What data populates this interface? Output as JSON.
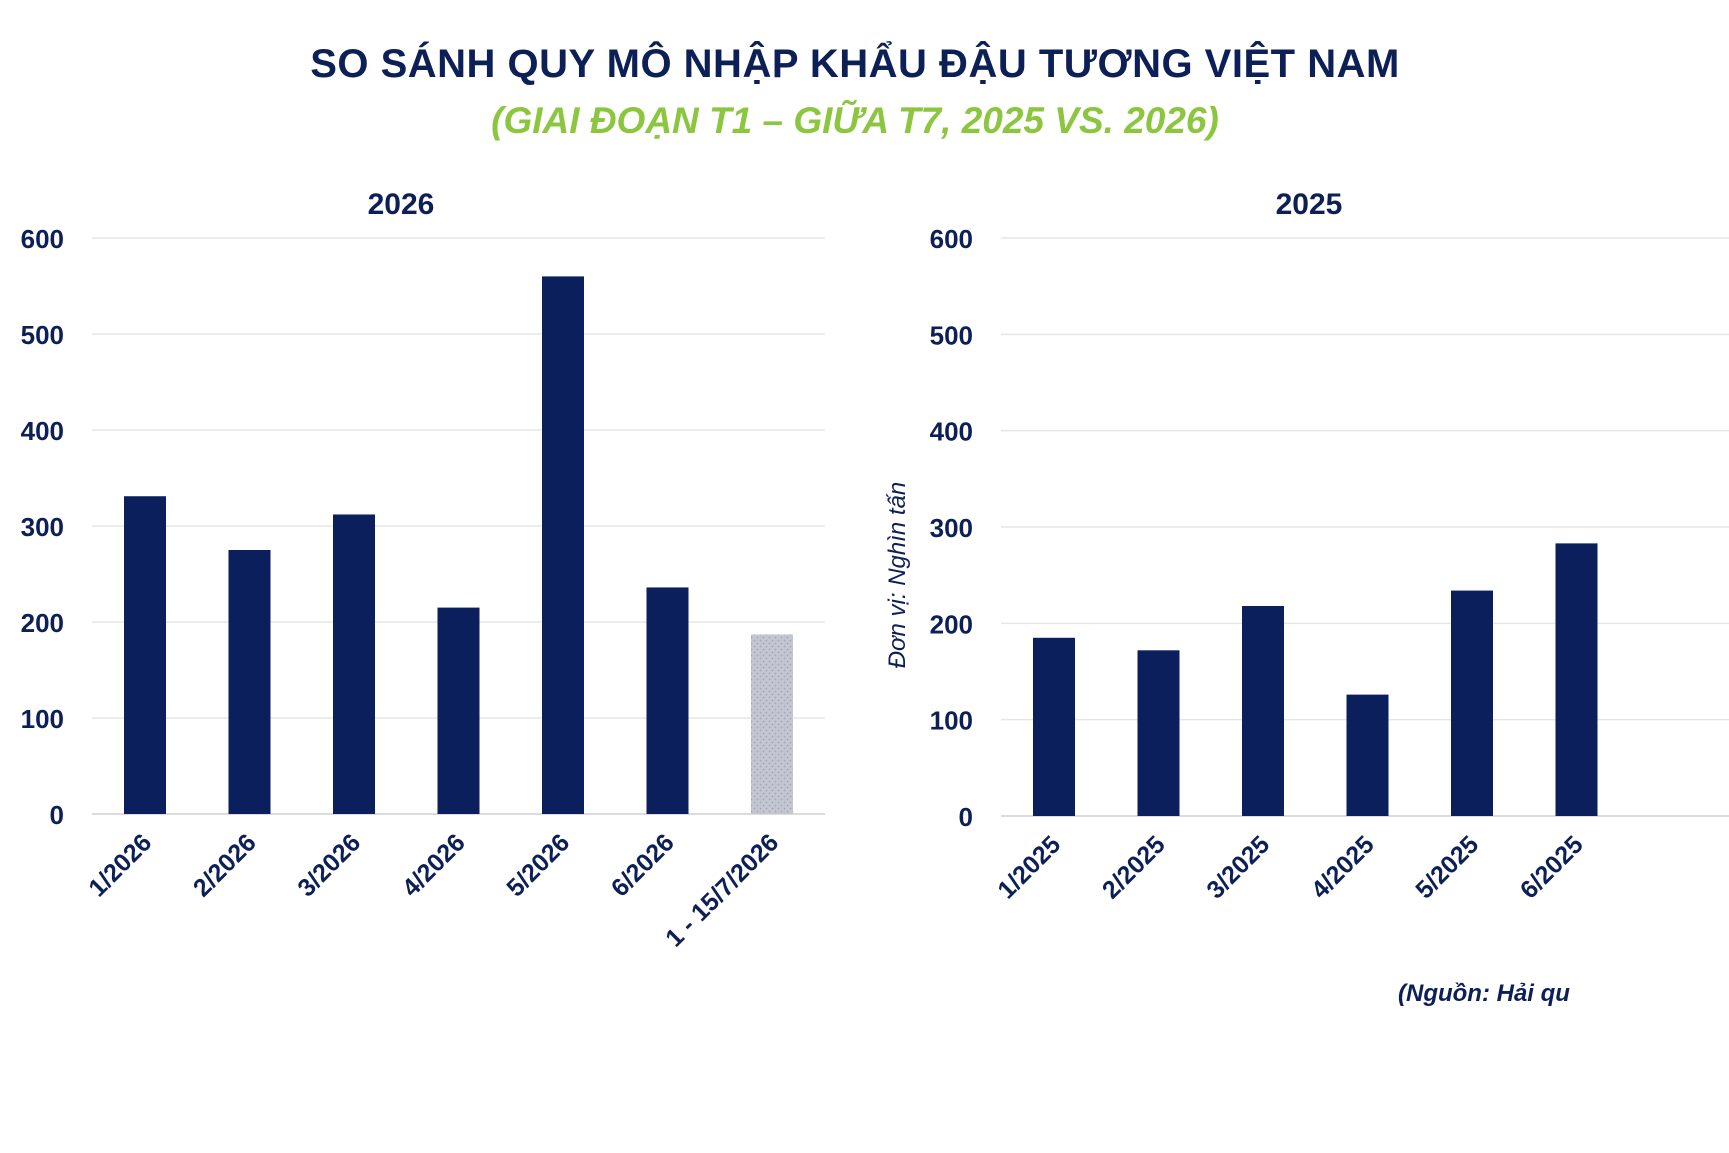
{
  "header": {
    "title": "SO SÁNH QUY MÔ NHẬP KHẨU ĐẬU TƯƠNG VIỆT NAM",
    "subtitle": "(GIAI ĐOẠN T1 – GIỮA T7, 2025 VS. 2026)"
  },
  "footer": {
    "source": "(Nguồn: Hải qu"
  },
  "colors": {
    "bar": "#0a1f5c",
    "partial_bar": "#b8bcc8",
    "title": "#0d1f57",
    "subtitle": "#8cc63f",
    "grid": "#e6e6e6"
  },
  "chart_data": [
    {
      "type": "bar",
      "title": "2026",
      "ylabel": "",
      "ylim": [
        0,
        600
      ],
      "yticks": [
        "0",
        "100",
        "200",
        "300",
        "400",
        "500",
        "600"
      ],
      "categories": [
        "1/2026",
        "2/2026",
        "3/2026",
        "4/2026",
        "5/2026",
        "6/2026",
        "1 - 15/7/2026"
      ],
      "values": [
        331,
        275,
        312,
        215,
        560,
        236,
        187
      ],
      "partial": [
        false,
        false,
        false,
        false,
        false,
        false,
        true
      ],
      "grid": true,
      "legend": "none"
    },
    {
      "type": "bar",
      "title": "2025",
      "ylabel": "Đơn vị: Nghìn tấn",
      "ylim": [
        0,
        600
      ],
      "yticks": [
        "0",
        "100",
        "200",
        "300",
        "400",
        "500",
        "600"
      ],
      "categories": [
        "1/2025",
        "2/2025",
        "3/2025",
        "4/2025",
        "5/2025",
        "6/2025"
      ],
      "values": [
        185,
        172,
        218,
        126,
        234,
        283
      ],
      "partial": [
        false,
        false,
        false,
        false,
        false,
        false
      ],
      "grid": true,
      "legend": "none"
    }
  ]
}
